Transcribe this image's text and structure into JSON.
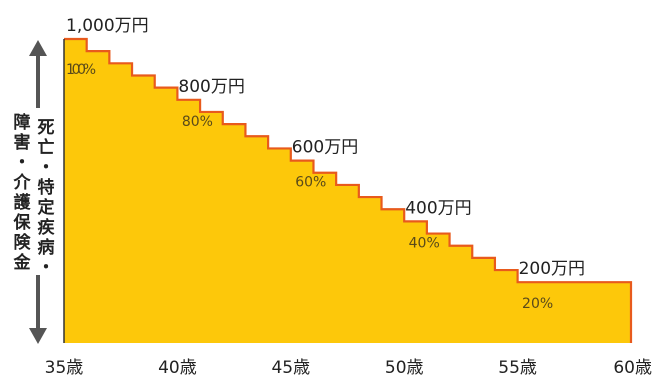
{
  "chart_data": {
    "type": "area",
    "subtype": "step",
    "x_ticks": [
      "35歳",
      "40歳",
      "45歳",
      "50歳",
      "55歳",
      "60歳"
    ],
    "x_range": [
      35,
      60
    ],
    "y_range": [
      0,
      100
    ],
    "steps": [
      {
        "age": 35,
        "percent": 100
      },
      {
        "age": 36,
        "percent": 96
      },
      {
        "age": 37,
        "percent": 92
      },
      {
        "age": 38,
        "percent": 88
      },
      {
        "age": 39,
        "percent": 84
      },
      {
        "age": 40,
        "percent": 80
      },
      {
        "age": 41,
        "percent": 76
      },
      {
        "age": 42,
        "percent": 72
      },
      {
        "age": 43,
        "percent": 68
      },
      {
        "age": 44,
        "percent": 64
      },
      {
        "age": 45,
        "percent": 60
      },
      {
        "age": 46,
        "percent": 56
      },
      {
        "age": 47,
        "percent": 52
      },
      {
        "age": 48,
        "percent": 48
      },
      {
        "age": 49,
        "percent": 44
      },
      {
        "age": 50,
        "percent": 40
      },
      {
        "age": 51,
        "percent": 36
      },
      {
        "age": 52,
        "percent": 32
      },
      {
        "age": 53,
        "percent": 28
      },
      {
        "age": 54,
        "percent": 24
      },
      {
        "age": 55,
        "percent": 20
      },
      {
        "age": 56,
        "percent": 20
      },
      {
        "age": 57,
        "percent": 20
      },
      {
        "age": 58,
        "percent": 20
      },
      {
        "age": 59,
        "percent": 20
      }
    ],
    "labels": [
      {
        "age": 35,
        "amount": "1,000万円",
        "percent_label": "100%"
      },
      {
        "age": 40,
        "amount": "800万円",
        "percent_label": "80%"
      },
      {
        "age": 45,
        "amount": "600万円",
        "percent_label": "60%"
      },
      {
        "age": 50,
        "amount": "400万円",
        "percent_label": "40%"
      },
      {
        "age": 55,
        "amount": "200万円",
        "percent_label": "20%"
      }
    ],
    "y_axis_label": {
      "line1": "死亡・特定疾病・",
      "line2": "障害・介護保険金"
    },
    "colors": {
      "fill": "#fdc80a",
      "outline": "#e85a1c",
      "arrow": "#555555"
    },
    "grid": false
  }
}
